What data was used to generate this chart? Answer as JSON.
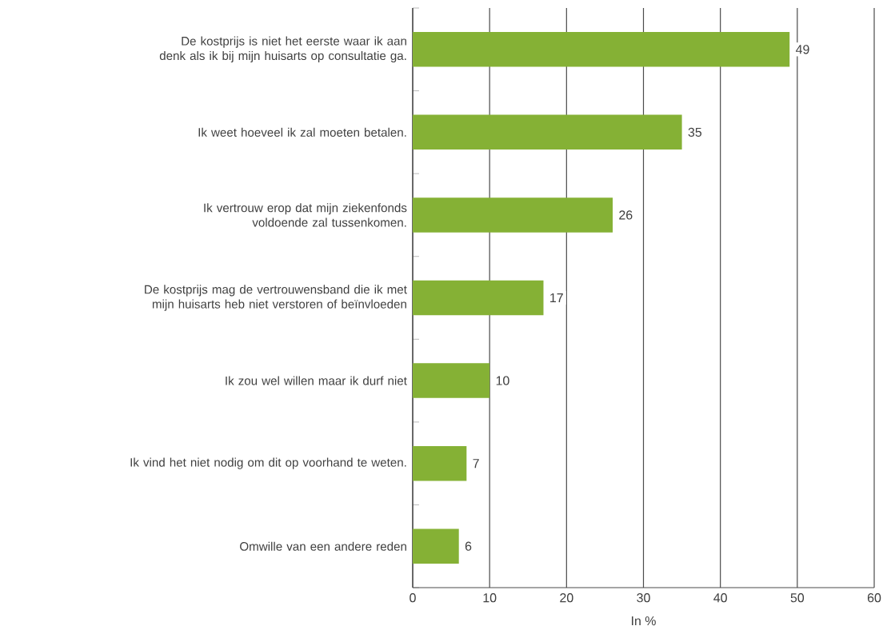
{
  "chart_data": {
    "type": "bar",
    "orientation": "horizontal",
    "xlabel": "In %",
    "categories": [
      "De kostprijs is niet het eerste waar ik aan denk als ik bij mijn huisarts op consultatie ga.",
      "Ik weet hoeveel ik zal moeten betalen.",
      "Ik vertrouw erop dat mijn ziekenfonds voldoende zal tussenkomen.",
      "De kostprijs mag de vertrouwensband die ik met mijn huisarts heb niet verstoren of beïnvloeden",
      "Ik zou wel willen maar ik durf niet",
      "Ik vind het niet nodig om dit op voorhand te weten.",
      "Omwille van een andere reden"
    ],
    "values": [
      49,
      35,
      26,
      17,
      10,
      7,
      6
    ],
    "color": "#85b135",
    "data_labels": true,
    "grid": "x",
    "xlim": [
      0,
      60
    ],
    "xticks": [
      0,
      10,
      20,
      30,
      40,
      50,
      60
    ]
  }
}
